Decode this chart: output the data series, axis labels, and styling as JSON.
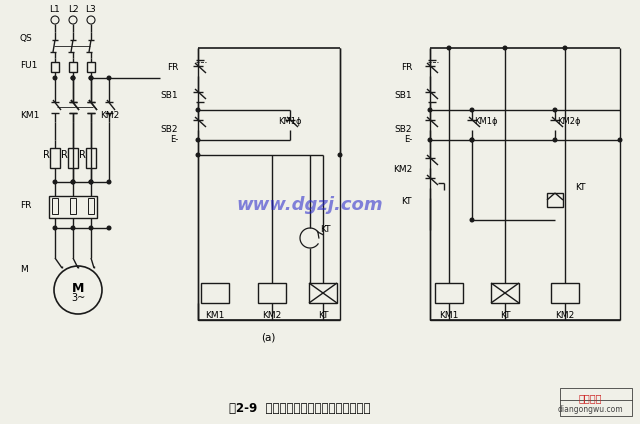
{
  "title": "图2-9  定子电路串电阻降压启动控制线路",
  "watermark": "www.dgzj.com",
  "watermark_color": "#2222cc",
  "watermark_alpha": 0.55,
  "bg_color": "#f0f0e8",
  "line_color": "#1a1a1a",
  "label_a": "(a)"
}
